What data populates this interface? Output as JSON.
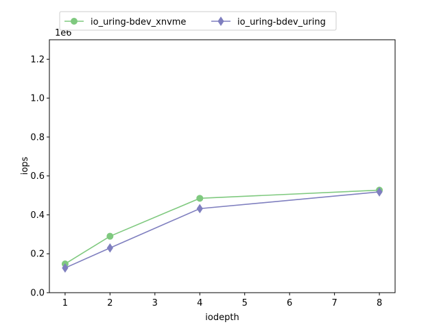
{
  "chart_data": {
    "type": "line",
    "xlabel": "iodepth",
    "ylabel": "iops",
    "y_offset_label": "1e6",
    "x_ticks": [
      1,
      2,
      3,
      4,
      5,
      6,
      7,
      8
    ],
    "y_ticks": [
      0.0,
      0.2,
      0.4,
      0.6,
      0.8,
      1.0,
      1.2
    ],
    "x_tick_labels": [
      "1",
      "2",
      "3",
      "4",
      "5",
      "6",
      "7",
      "8"
    ],
    "y_tick_labels": [
      "0.0",
      "0.2",
      "0.4",
      "0.6",
      "0.8",
      "1.0",
      "1.2"
    ],
    "xlim": [
      0.65,
      8.35
    ],
    "ylim": [
      0,
      1300000
    ],
    "grid": false,
    "legend_position": "top",
    "x": [
      1,
      2,
      4,
      8
    ],
    "series": [
      {
        "name": "io_uring-bdev_xnvme",
        "values": [
          148000,
          290000,
          485000,
          527000
        ],
        "color": "#7fc97f",
        "marker": "circle"
      },
      {
        "name": "io_uring-bdev_uring",
        "values": [
          127000,
          230000,
          432000,
          518000
        ],
        "color": "#7f7fbf",
        "marker": "diamond"
      }
    ]
  }
}
